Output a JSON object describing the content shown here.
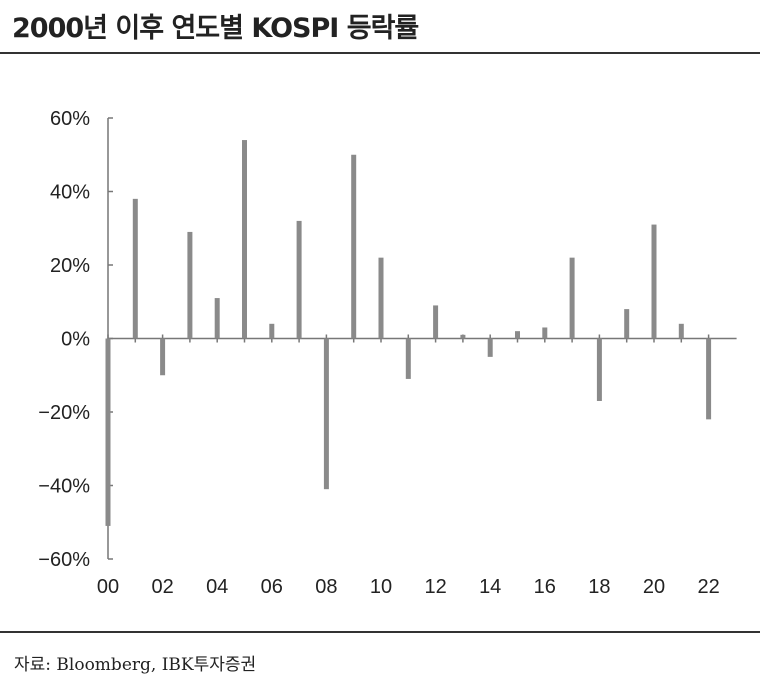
{
  "title": "2000년 이후 연도별 KOSPI 등락률",
  "source": "자료: Bloomberg, IBK투자증권",
  "chart_data": {
    "type": "bar",
    "title": "2000년 이후 연도별 KOSPI 등락률",
    "xlabel": "",
    "ylabel": "",
    "ylim": [
      -60,
      60
    ],
    "yticks": [
      60,
      40,
      20,
      0,
      -20,
      -40,
      -60
    ],
    "ytick_labels": [
      "60%",
      "40%",
      "20%",
      "0%",
      "−20%",
      "−40%",
      "−60%"
    ],
    "xtick_labels": [
      "00",
      "02",
      "04",
      "06",
      "08",
      "10",
      "12",
      "14",
      "16",
      "18",
      "20",
      "22"
    ],
    "categories": [
      "00",
      "01",
      "02",
      "03",
      "04",
      "05",
      "06",
      "07",
      "08",
      "09",
      "10",
      "11",
      "12",
      "13",
      "14",
      "15",
      "16",
      "17",
      "18",
      "19",
      "20",
      "21",
      "22"
    ],
    "values": [
      -51,
      38,
      -10,
      29,
      11,
      54,
      4,
      32,
      -41,
      50,
      22,
      -11,
      9,
      1,
      -5,
      2,
      3,
      22,
      -17,
      8,
      31,
      4,
      -22
    ],
    "grid": false,
    "bar_color": "#8a8a8a"
  }
}
